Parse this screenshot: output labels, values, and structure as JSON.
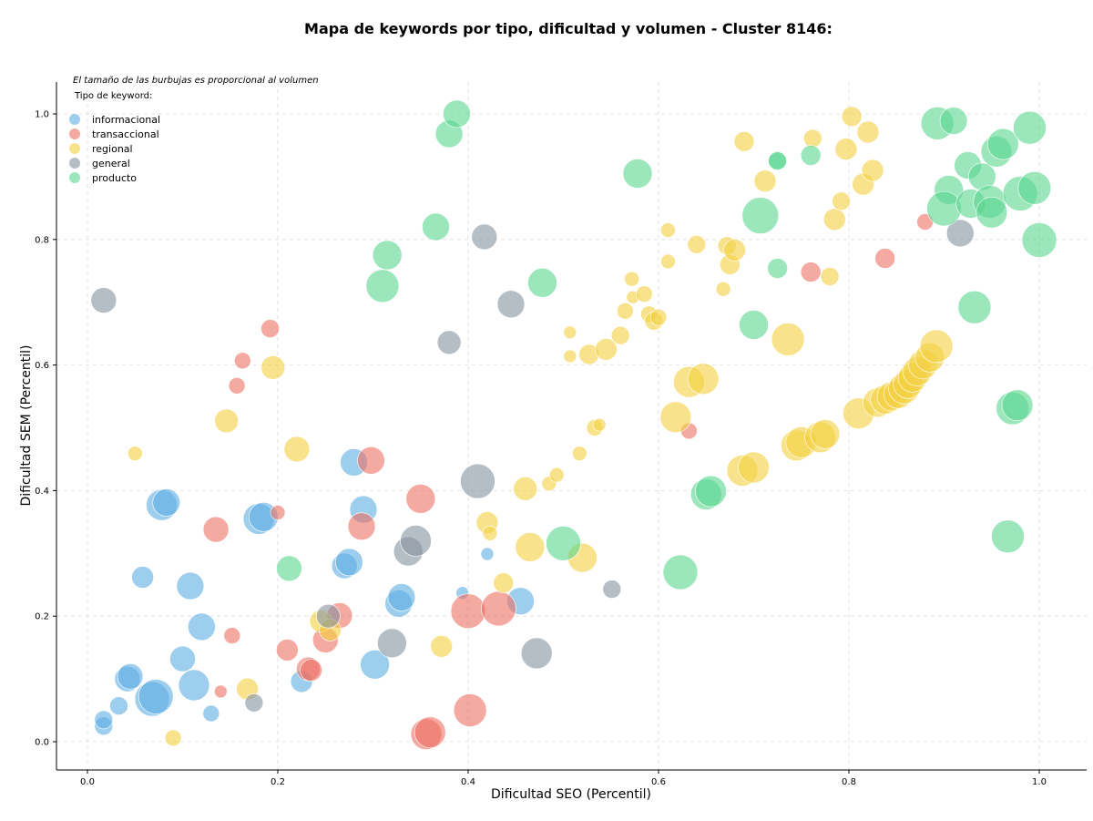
{
  "chart_data": {
    "type": "scatter",
    "title": "Mapa de keywords por tipo, dificultad y volumen - Cluster 8146:",
    "xlabel": "Dificultad SEO (Percentil)",
    "ylabel": "Dificultad SEM (Percentil)",
    "xlim": [
      -0.03,
      1.05
    ],
    "ylim": [
      -0.045,
      1.05
    ],
    "xticks": [
      "0.0",
      "0.2",
      "0.4",
      "0.6",
      "0.8",
      "1.0"
    ],
    "yticks": [
      "0.0",
      "0.2",
      "0.4",
      "0.6",
      "0.8",
      "1.0"
    ],
    "grid": true,
    "legend_position": "top-left",
    "note": "El tamaño de las burbujas es proporcional al volumen",
    "legend_title": "Tipo de keyword:",
    "point_format": "[x, y, relative_volume]",
    "series": [
      {
        "name": "informacional",
        "color": "#5dade2",
        "points": [
          [
            0.017,
            0.025,
            10
          ],
          [
            0.017,
            0.035,
            10
          ],
          [
            0.033,
            0.057,
            10
          ],
          [
            0.042,
            0.1,
            14
          ],
          [
            0.045,
            0.104,
            14
          ],
          [
            0.068,
            0.068,
            19
          ],
          [
            0.072,
            0.072,
            19
          ],
          [
            0.078,
            0.377,
            17
          ],
          [
            0.083,
            0.381,
            15
          ],
          [
            0.058,
            0.262,
            12
          ],
          [
            0.1,
            0.132,
            14
          ],
          [
            0.108,
            0.248,
            15
          ],
          [
            0.112,
            0.09,
            17
          ],
          [
            0.12,
            0.183,
            15
          ],
          [
            0.13,
            0.045,
            9
          ],
          [
            0.18,
            0.355,
            17
          ],
          [
            0.185,
            0.358,
            16
          ],
          [
            0.225,
            0.096,
            12
          ],
          [
            0.27,
            0.28,
            14
          ],
          [
            0.275,
            0.286,
            15
          ],
          [
            0.28,
            0.445,
            15
          ],
          [
            0.29,
            0.37,
            15
          ],
          [
            0.302,
            0.123,
            16
          ],
          [
            0.327,
            0.22,
            15
          ],
          [
            0.33,
            0.23,
            15
          ],
          [
            0.394,
            0.237,
            7
          ],
          [
            0.42,
            0.299,
            7
          ],
          [
            0.455,
            0.224,
            15
          ]
        ]
      },
      {
        "name": "transaccional",
        "color": "#ec7063",
        "points": [
          [
            0.135,
            0.338,
            14
          ],
          [
            0.152,
            0.169,
            9
          ],
          [
            0.14,
            0.08,
            7
          ],
          [
            0.157,
            0.567,
            9
          ],
          [
            0.163,
            0.607,
            9
          ],
          [
            0.192,
            0.658,
            10
          ],
          [
            0.2,
            0.365,
            8
          ],
          [
            0.21,
            0.146,
            12
          ],
          [
            0.232,
            0.116,
            13
          ],
          [
            0.235,
            0.114,
            12
          ],
          [
            0.25,
            0.162,
            14
          ],
          [
            0.265,
            0.201,
            14
          ],
          [
            0.288,
            0.343,
            15
          ],
          [
            0.298,
            0.448,
            15
          ],
          [
            0.35,
            0.387,
            16
          ],
          [
            0.356,
            0.012,
            17
          ],
          [
            0.36,
            0.015,
            17
          ],
          [
            0.4,
            0.208,
            19
          ],
          [
            0.402,
            0.05,
            18
          ],
          [
            0.432,
            0.212,
            19
          ],
          [
            0.632,
            0.495,
            9
          ],
          [
            0.838,
            0.77,
            11
          ],
          [
            0.88,
            0.828,
            9
          ],
          [
            0.76,
            0.748,
            11
          ]
        ]
      },
      {
        "name": "regional",
        "color": "#f4d03f",
        "points": [
          [
            0.05,
            0.459,
            8
          ],
          [
            0.09,
            0.006,
            9
          ],
          [
            0.146,
            0.511,
            13
          ],
          [
            0.168,
            0.084,
            12
          ],
          [
            0.195,
            0.596,
            13
          ],
          [
            0.22,
            0.466,
            14
          ],
          [
            0.245,
            0.192,
            12
          ],
          [
            0.255,
            0.178,
            12
          ],
          [
            0.372,
            0.152,
            12
          ],
          [
            0.42,
            0.349,
            12
          ],
          [
            0.423,
            0.332,
            8
          ],
          [
            0.437,
            0.253,
            11
          ],
          [
            0.46,
            0.403,
            13
          ],
          [
            0.465,
            0.31,
            16
          ],
          [
            0.485,
            0.411,
            8
          ],
          [
            0.493,
            0.425,
            8
          ],
          [
            0.507,
            0.614,
            7
          ],
          [
            0.507,
            0.652,
            7
          ],
          [
            0.517,
            0.459,
            8
          ],
          [
            0.52,
            0.293,
            16
          ],
          [
            0.527,
            0.617,
            11
          ],
          [
            0.533,
            0.5,
            9
          ],
          [
            0.538,
            0.505,
            7
          ],
          [
            0.545,
            0.625,
            12
          ],
          [
            0.56,
            0.647,
            10
          ],
          [
            0.565,
            0.686,
            9
          ],
          [
            0.573,
            0.708,
            7
          ],
          [
            0.572,
            0.737,
            8
          ],
          [
            0.585,
            0.713,
            9
          ],
          [
            0.59,
            0.681,
            9
          ],
          [
            0.595,
            0.67,
            10
          ],
          [
            0.6,
            0.676,
            9
          ],
          [
            0.61,
            0.815,
            8
          ],
          [
            0.61,
            0.765,
            8
          ],
          [
            0.618,
            0.517,
            17
          ],
          [
            0.632,
            0.573,
            17
          ],
          [
            0.647,
            0.578,
            17
          ],
          [
            0.64,
            0.792,
            10
          ],
          [
            0.668,
            0.721,
            8
          ],
          [
            0.672,
            0.79,
            10
          ],
          [
            0.675,
            0.76,
            11
          ],
          [
            0.68,
            0.783,
            12
          ],
          [
            0.688,
            0.432,
            17
          ],
          [
            0.69,
            0.956,
            11
          ],
          [
            0.7,
            0.437,
            17
          ],
          [
            0.712,
            0.893,
            12
          ],
          [
            0.736,
            0.641,
            18
          ],
          [
            0.745,
            0.472,
            17
          ],
          [
            0.75,
            0.477,
            17
          ],
          [
            0.762,
            0.961,
            10
          ],
          [
            0.77,
            0.485,
            17
          ],
          [
            0.775,
            0.49,
            16
          ],
          [
            0.78,
            0.741,
            10
          ],
          [
            0.785,
            0.832,
            12
          ],
          [
            0.792,
            0.861,
            10
          ],
          [
            0.797,
            0.944,
            12
          ],
          [
            0.803,
            0.996,
            11
          ],
          [
            0.81,
            0.523,
            17
          ],
          [
            0.815,
            0.888,
            12
          ],
          [
            0.82,
            0.971,
            12
          ],
          [
            0.825,
            0.91,
            12
          ],
          [
            0.83,
            0.54,
            16
          ],
          [
            0.838,
            0.545,
            16
          ],
          [
            0.845,
            0.55,
            16
          ],
          [
            0.852,
            0.554,
            16
          ],
          [
            0.858,
            0.563,
            17
          ],
          [
            0.862,
            0.57,
            16
          ],
          [
            0.867,
            0.58,
            16
          ],
          [
            0.872,
            0.59,
            16
          ],
          [
            0.878,
            0.601,
            16
          ],
          [
            0.885,
            0.612,
            16
          ],
          [
            0.892,
            0.63,
            18
          ]
        ]
      },
      {
        "name": "general",
        "color": "#85929e",
        "points": [
          [
            0.017,
            0.703,
            14
          ],
          [
            0.175,
            0.062,
            10
          ],
          [
            0.253,
            0.2,
            13
          ],
          [
            0.32,
            0.157,
            16
          ],
          [
            0.337,
            0.303,
            16
          ],
          [
            0.345,
            0.32,
            17
          ],
          [
            0.38,
            0.636,
            13
          ],
          [
            0.41,
            0.415,
            19
          ],
          [
            0.417,
            0.804,
            14
          ],
          [
            0.445,
            0.697,
            15
          ],
          [
            0.472,
            0.141,
            17
          ],
          [
            0.551,
            0.243,
            10
          ],
          [
            0.917,
            0.81,
            15
          ]
        ]
      },
      {
        "name": "producto",
        "color": "#58d68d",
        "points": [
          [
            0.212,
            0.276,
            14
          ],
          [
            0.31,
            0.726,
            18
          ],
          [
            0.315,
            0.775,
            16
          ],
          [
            0.366,
            0.82,
            15
          ],
          [
            0.38,
            0.968,
            15
          ],
          [
            0.388,
            1.0,
            15
          ],
          [
            0.478,
            0.731,
            16
          ],
          [
            0.5,
            0.316,
            19
          ],
          [
            0.578,
            0.905,
            16
          ],
          [
            0.623,
            0.27,
            19
          ],
          [
            0.65,
            0.394,
            17
          ],
          [
            0.655,
            0.399,
            17
          ],
          [
            0.7,
            0.664,
            16
          ],
          [
            0.707,
            0.838,
            20
          ],
          [
            0.725,
            0.926,
            10
          ],
          [
            0.725,
            0.925,
            10
          ],
          [
            0.725,
            0.754,
            11
          ],
          [
            0.76,
            0.934,
            11
          ],
          [
            0.893,
            0.985,
            18
          ],
          [
            0.91,
            0.989,
            15
          ],
          [
            0.905,
            0.879,
            16
          ],
          [
            0.9,
            0.849,
            19
          ],
          [
            0.925,
            0.918,
            15
          ],
          [
            0.928,
            0.857,
            16
          ],
          [
            0.932,
            0.692,
            18
          ],
          [
            0.94,
            0.9,
            15
          ],
          [
            0.948,
            0.86,
            18
          ],
          [
            0.95,
            0.843,
            17
          ],
          [
            0.955,
            0.94,
            17
          ],
          [
            0.962,
            0.952,
            17
          ],
          [
            0.967,
            0.327,
            18
          ],
          [
            0.972,
            0.531,
            18
          ],
          [
            0.977,
            0.536,
            17
          ],
          [
            0.98,
            0.873,
            19
          ],
          [
            0.99,
            0.978,
            18
          ],
          [
            0.995,
            0.882,
            18
          ],
          [
            1.0,
            0.799,
            19
          ]
        ]
      }
    ]
  }
}
